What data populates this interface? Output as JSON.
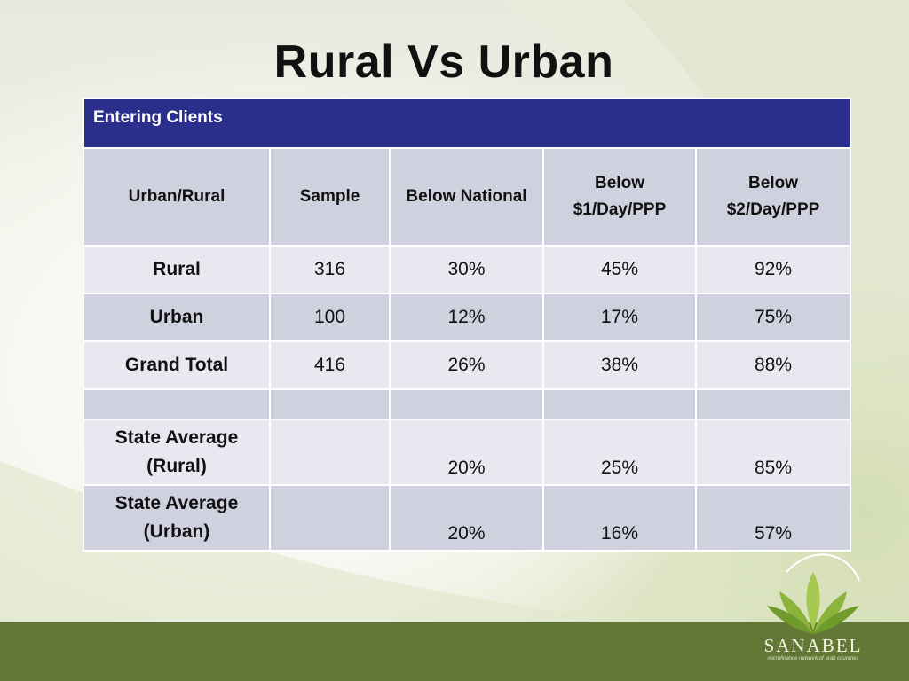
{
  "slide": {
    "title": "Rural Vs Urban"
  },
  "table": {
    "banner": "Entering Clients",
    "headers": [
      "Urban/Rural",
      "Sample",
      "Below National",
      "Below $1/Day/PPP",
      "Below $2/Day/PPP"
    ],
    "rows": [
      [
        "Rural",
        "316",
        "30%",
        "45%",
        "92%"
      ],
      [
        "Urban",
        "100",
        "12%",
        "17%",
        "75%"
      ],
      [
        "Grand Total",
        "416",
        "26%",
        "38%",
        "88%"
      ],
      [
        "",
        "",
        "",
        "",
        ""
      ],
      [
        "State Average (Rural)",
        "",
        "20%",
        "25%",
        "85%"
      ],
      [
        "State Average (Urban)",
        "",
        "20%",
        "16%",
        "57%"
      ]
    ]
  },
  "logo": {
    "name": "SANABEL",
    "tagline": "microfinance network of arab countries",
    "icon": "leaf-sprout-icon"
  },
  "colors": {
    "banner": "#2b2f8c",
    "header_row": "#cfd1de",
    "light_row": "#e8e9f0",
    "footer": "#637834"
  }
}
